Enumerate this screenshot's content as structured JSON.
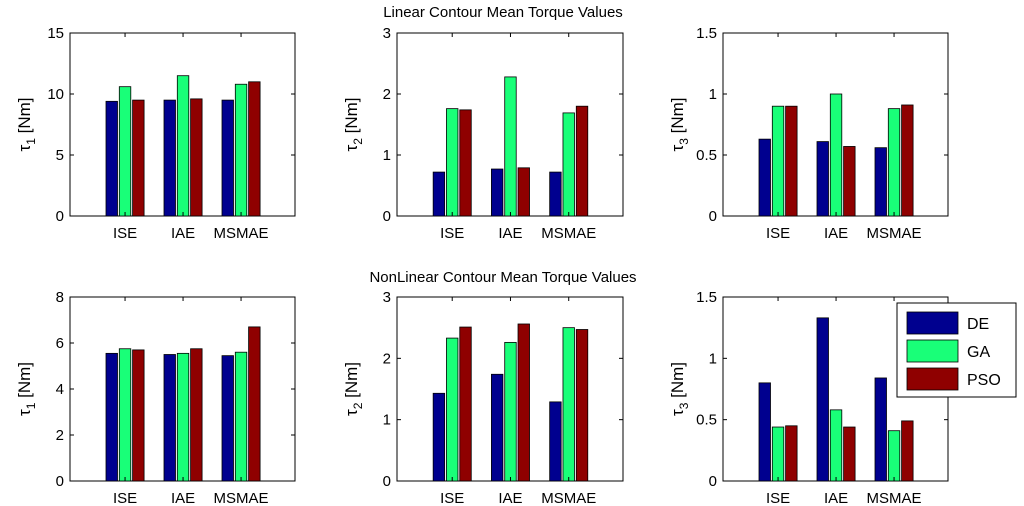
{
  "chart_data": [
    {
      "type": "bar",
      "title": "Linear Contour Mean Torque Values",
      "ylabel": "τ",
      "ylabel_sub": "1",
      "ylabel_unit": " [Nm]",
      "categories": [
        "ISE",
        "IAE",
        "MSMAE"
      ],
      "ylim": [
        0,
        15
      ],
      "yticks": [
        "0",
        "5",
        "10",
        "15"
      ],
      "series": [
        {
          "name": "DE",
          "values": [
            9.4,
            9.5,
            9.5
          ]
        },
        {
          "name": "GA",
          "values": [
            10.6,
            11.5,
            10.8
          ]
        },
        {
          "name": "PSO",
          "values": [
            9.5,
            9.6,
            11.0
          ]
        }
      ]
    },
    {
      "type": "bar",
      "title": "",
      "ylabel": "τ",
      "ylabel_sub": "2",
      "ylabel_unit": " [Nm]",
      "categories": [
        "ISE",
        "IAE",
        "MSMAE"
      ],
      "ylim": [
        0,
        3
      ],
      "yticks": [
        "0",
        "1",
        "2",
        "3"
      ],
      "series": [
        {
          "name": "DE",
          "values": [
            0.72,
            0.77,
            0.72
          ]
        },
        {
          "name": "GA",
          "values": [
            1.76,
            2.28,
            1.69
          ]
        },
        {
          "name": "PSO",
          "values": [
            1.74,
            0.79,
            1.8
          ]
        }
      ]
    },
    {
      "type": "bar",
      "title": "",
      "ylabel": "τ",
      "ylabel_sub": "3",
      "ylabel_unit": " [Nm]",
      "categories": [
        "ISE",
        "IAE",
        "MSMAE"
      ],
      "ylim": [
        0,
        1.5
      ],
      "yticks": [
        "0",
        "0.5",
        "1",
        "1.5"
      ],
      "series": [
        {
          "name": "DE",
          "values": [
            0.63,
            0.61,
            0.56
          ]
        },
        {
          "name": "GA",
          "values": [
            0.9,
            1.0,
            0.88
          ]
        },
        {
          "name": "PSO",
          "values": [
            0.9,
            0.57,
            0.91
          ]
        }
      ]
    },
    {
      "type": "bar",
      "title": "NonLinear Contour Mean Torque Values",
      "ylabel": "τ",
      "ylabel_sub": "1",
      "ylabel_unit": " [Nm]",
      "categories": [
        "ISE",
        "IAE",
        "MSMAE"
      ],
      "ylim": [
        0,
        8
      ],
      "yticks": [
        "0",
        "2",
        "4",
        "6",
        "8"
      ],
      "series": [
        {
          "name": "DE",
          "values": [
            5.55,
            5.5,
            5.45
          ]
        },
        {
          "name": "GA",
          "values": [
            5.75,
            5.55,
            5.6
          ]
        },
        {
          "name": "PSO",
          "values": [
            5.7,
            5.75,
            6.7
          ]
        }
      ]
    },
    {
      "type": "bar",
      "title": "",
      "ylabel": "τ",
      "ylabel_sub": "2",
      "ylabel_unit": " [Nm]",
      "categories": [
        "ISE",
        "IAE",
        "MSMAE"
      ],
      "ylim": [
        0,
        3
      ],
      "yticks": [
        "0",
        "1",
        "2",
        "3"
      ],
      "series": [
        {
          "name": "DE",
          "values": [
            1.43,
            1.74,
            1.29
          ]
        },
        {
          "name": "GA",
          "values": [
            2.33,
            2.26,
            2.5
          ]
        },
        {
          "name": "PSO",
          "values": [
            2.51,
            2.56,
            2.47
          ]
        }
      ]
    },
    {
      "type": "bar",
      "title": "",
      "ylabel": "τ",
      "ylabel_sub": "3",
      "ylabel_unit": " [Nm]",
      "categories": [
        "ISE",
        "IAE",
        "MSMAE"
      ],
      "ylim": [
        0,
        1.5
      ],
      "yticks": [
        "0",
        "0.5",
        "1",
        "1.5"
      ],
      "series": [
        {
          "name": "DE",
          "values": [
            0.8,
            1.33,
            0.84
          ]
        },
        {
          "name": "GA",
          "values": [
            0.44,
            0.58,
            0.41
          ]
        },
        {
          "name": "PSO",
          "values": [
            0.45,
            0.44,
            0.49
          ]
        }
      ]
    }
  ],
  "legend": {
    "position": "inside-right of bottom-right panel",
    "entries": [
      {
        "name": "DE",
        "color": "#00008f"
      },
      {
        "name": "GA",
        "color": "#19ff78"
      },
      {
        "name": "PSO",
        "color": "#8f0000"
      }
    ]
  },
  "series_colors": [
    "#00008f",
    "#19ff78",
    "#8f0000"
  ]
}
